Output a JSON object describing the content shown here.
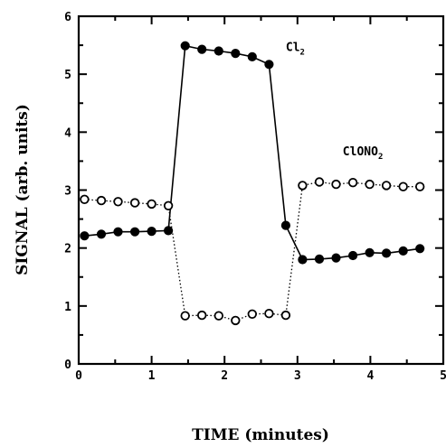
{
  "chart_data": {
    "type": "scatter",
    "title": "",
    "xlabel": "TIME (minutes)",
    "ylabel": "SIGNAL (arb. units)",
    "xlim": [
      0,
      5
    ],
    "ylim": [
      0,
      6
    ],
    "xticks": [
      "0",
      "1",
      "2",
      "3",
      "4",
      "5"
    ],
    "yticks": [
      "0",
      "1",
      "2",
      "3",
      "4",
      "5",
      "6"
    ],
    "grid": false,
    "series": [
      {
        "name": "Cl2",
        "label_main": "Cl",
        "label_sub": "2",
        "marker": "filled-circle",
        "line": "solid",
        "x": [
          0.08,
          0.31,
          0.54,
          0.77,
          1.0,
          1.23,
          1.46,
          1.69,
          1.92,
          2.15,
          2.38,
          2.61,
          2.84,
          3.07,
          3.3,
          3.53,
          3.76,
          3.99,
          4.22,
          4.45,
          4.68
        ],
        "y": [
          2.21,
          2.24,
          2.28,
          2.28,
          2.29,
          2.3,
          5.49,
          5.43,
          5.4,
          5.36,
          5.3,
          5.17,
          2.39,
          1.8,
          1.81,
          1.83,
          1.87,
          1.92,
          1.91,
          1.95,
          1.99
        ]
      },
      {
        "name": "ClONO2",
        "label_main": "ClONO",
        "label_sub": "2",
        "marker": "open-circle",
        "line": "dotted",
        "x": [
          0.08,
          0.31,
          0.54,
          0.77,
          1.0,
          1.23,
          1.46,
          1.69,
          1.92,
          2.15,
          2.38,
          2.61,
          2.84,
          3.07,
          3.3,
          3.53,
          3.76,
          3.99,
          4.22,
          4.45,
          4.68
        ],
        "y": [
          2.84,
          2.82,
          2.8,
          2.78,
          2.76,
          2.73,
          0.83,
          0.84,
          0.83,
          0.75,
          0.86,
          0.87,
          0.84,
          3.08,
          3.14,
          3.1,
          3.13,
          3.1,
          3.08,
          3.06,
          3.06
        ]
      }
    ]
  }
}
